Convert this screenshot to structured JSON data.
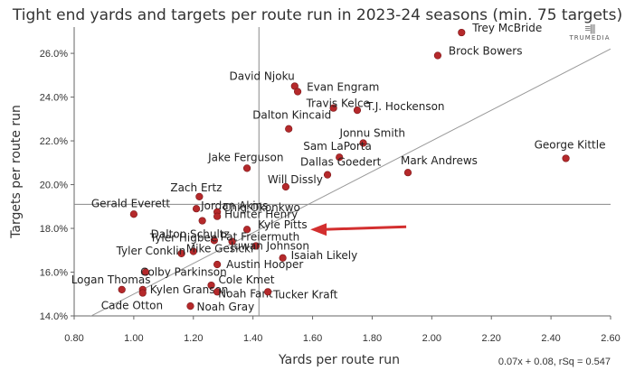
{
  "title": "Tight end yards and targets per route run in 2023-24 seasons (min. 75 targets)",
  "logo": {
    "mark": "≡|||",
    "word": "TRUMEDIA"
  },
  "footer": {
    "formula": "0.07x + 0.08, rSq = 0.547"
  },
  "colors": {
    "point": "#b5292b",
    "arrow": "#d32f2f",
    "trendline": "#999999",
    "crosshair": "#888888",
    "axis": "#666666"
  },
  "chart_data": {
    "type": "scatter",
    "title": "Tight end yards and targets per route run in 2023-24 seasons (min. 75 targets)",
    "xlabel": "Yards per route run",
    "ylabel": "Targets per route run",
    "xlim": [
      0.8,
      2.6
    ],
    "ylim": [
      14.0,
      27.2
    ],
    "x_ticks": [
      "0.80",
      "1.00",
      "1.20",
      "1.40",
      "1.60",
      "1.80",
      "2.00",
      "2.20",
      "2.40",
      "2.60"
    ],
    "y_ticks": [
      "14.0%",
      "16.0%",
      "18.0%",
      "20.0%",
      "22.0%",
      "24.0%",
      "26.0%"
    ],
    "grid": false,
    "legend": "none",
    "trendline": {
      "slope": 0.07,
      "intercept": 0.08,
      "label": "0.07x + 0.08, rSq = 0.547"
    },
    "reference_lines": {
      "x": 1.42,
      "y": 19.1
    },
    "annotation": {
      "type": "arrow",
      "points_to": "Kyle Pitts"
    },
    "points": [
      {
        "name": "Trey McBride",
        "x": 2.1,
        "y": 26.95
      },
      {
        "name": "Brock Bowers",
        "x": 2.02,
        "y": 25.9
      },
      {
        "name": "David Njoku",
        "x": 1.54,
        "y": 24.5
      },
      {
        "name": "Evan Engram",
        "x": 1.55,
        "y": 24.25
      },
      {
        "name": "Travis Kelce",
        "x": 1.67,
        "y": 23.5
      },
      {
        "name": "T.J. Hockenson",
        "x": 1.75,
        "y": 23.4
      },
      {
        "name": "Dalton Kincaid",
        "x": 1.52,
        "y": 22.55
      },
      {
        "name": "Jonnu Smith",
        "x": 1.77,
        "y": 21.9
      },
      {
        "name": "Sam LaPorta",
        "x": 1.69,
        "y": 21.25
      },
      {
        "name": "George Kittle",
        "x": 2.45,
        "y": 21.2
      },
      {
        "name": "Jake Ferguson",
        "x": 1.38,
        "y": 20.75
      },
      {
        "name": "Mark Andrews",
        "x": 1.92,
        "y": 20.55
      },
      {
        "name": "Dallas Goedert",
        "x": 1.65,
        "y": 20.45
      },
      {
        "name": "Will Dissly",
        "x": 1.51,
        "y": 19.9
      },
      {
        "name": "Zach Ertz",
        "x": 1.22,
        "y": 19.45
      },
      {
        "name": "Jordan Akins",
        "x": 1.21,
        "y": 18.9
      },
      {
        "name": "Chig Okonkwo",
        "x": 1.28,
        "y": 18.75
      },
      {
        "name": "Hunter Henry",
        "x": 1.28,
        "y": 18.55
      },
      {
        "name": "Gerald Everett",
        "x": 1.0,
        "y": 18.65
      },
      {
        "name": "Dalton Schultz",
        "x": 1.23,
        "y": 18.35
      },
      {
        "name": "Kyle Pitts",
        "x": 1.38,
        "y": 17.95
      },
      {
        "name": "Tyler Higbee",
        "x": 1.27,
        "y": 17.45
      },
      {
        "name": "Pat Freiermuth",
        "x": 1.33,
        "y": 17.4
      },
      {
        "name": "Juwan Johnson",
        "x": 1.41,
        "y": 17.2
      },
      {
        "name": "Tyler Conklin",
        "x": 1.16,
        "y": 16.85
      },
      {
        "name": "Mike Gesicki",
        "x": 1.2,
        "y": 16.95
      },
      {
        "name": "Isaiah Likely",
        "x": 1.5,
        "y": 16.65
      },
      {
        "name": "Austin Hooper",
        "x": 1.28,
        "y": 16.35
      },
      {
        "name": "Colby Parkinson",
        "x": 1.04,
        "y": 16.0
      },
      {
        "name": "Cole Kmet",
        "x": 1.26,
        "y": 15.4
      },
      {
        "name": "Logan Thomas",
        "x": 0.96,
        "y": 15.2
      },
      {
        "name": "Kylen Granson",
        "x": 1.03,
        "y": 15.2
      },
      {
        "name": "Noah Fant",
        "x": 1.28,
        "y": 15.1
      },
      {
        "name": "Tucker Kraft",
        "x": 1.45,
        "y": 15.1
      },
      {
        "name": "Cade Otton",
        "x": 1.03,
        "y": 15.05
      },
      {
        "name": "Noah Gray",
        "x": 1.19,
        "y": 14.45
      }
    ]
  }
}
